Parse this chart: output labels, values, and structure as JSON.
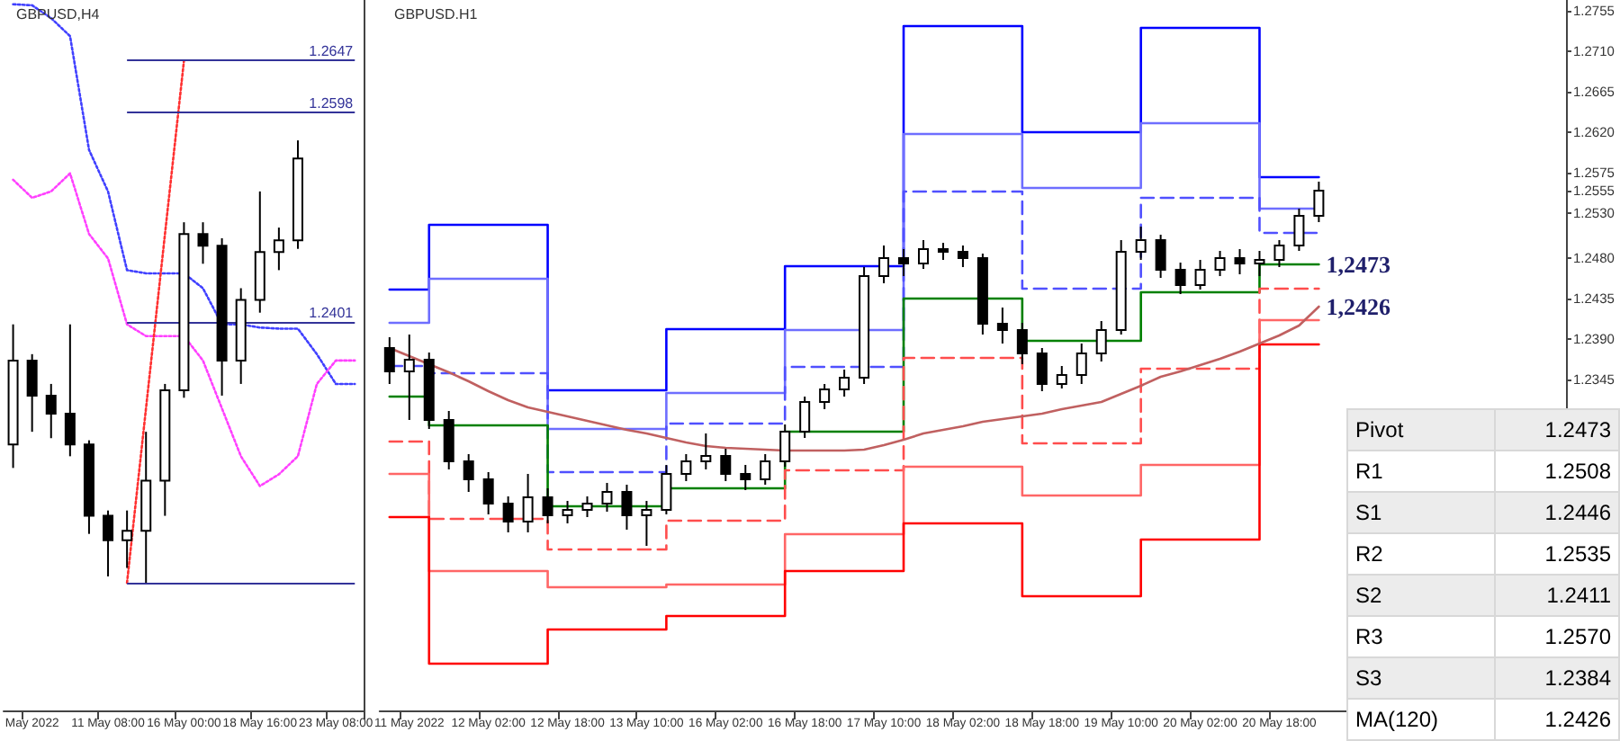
{
  "chart_data": [
    {
      "type": "candlestick",
      "title": "GBPUSD,H4",
      "categories": [
        null,
        "May 2022",
        null,
        null,
        null,
        "11 May 08:00",
        null,
        null,
        null,
        "16 May 00:00",
        null,
        null,
        null,
        "18 May 16:00",
        null,
        null,
        null,
        "23 May 08:00",
        null
      ],
      "ohlc": [
        [
          1.2286,
          1.2399,
          1.2264,
          1.2365
        ],
        [
          1.2365,
          1.2371,
          1.2298,
          1.2332
        ],
        [
          1.2332,
          1.2343,
          1.2292,
          1.2315
        ],
        [
          1.2315,
          1.2399,
          1.2275,
          1.2286
        ],
        [
          1.2286,
          1.229,
          1.2202,
          1.2219
        ],
        [
          1.2219,
          1.2224,
          1.2162,
          1.2196
        ],
        [
          1.2196,
          1.2224,
          1.217,
          1.2205
        ],
        [
          1.2205,
          1.2298,
          1.2156,
          1.2252
        ],
        [
          1.2252,
          1.2343,
          1.2219,
          1.2337
        ],
        [
          1.2337,
          1.2495,
          1.233,
          1.2484
        ],
        [
          1.2484,
          1.2495,
          1.2456,
          1.2473
        ],
        [
          1.2473,
          1.248,
          1.2332,
          1.2365
        ],
        [
          1.2365,
          1.2433,
          1.2343,
          1.2422
        ],
        [
          1.2422,
          1.2524,
          1.241,
          1.2467
        ],
        [
          1.2467,
          1.249,
          1.245,
          1.2478
        ],
        [
          1.2478,
          1.2572,
          1.247,
          1.2555
        ],
        null,
        null,
        null
      ],
      "series": [
        {
          "type": "line",
          "color": "#4040ff",
          "line_style": "dotted",
          "values": [
            1.27,
            1.2699,
            1.2687,
            1.267,
            1.2563,
            1.2524,
            1.245,
            1.2447,
            1.2447,
            1.2447,
            1.2433,
            1.2399,
            1.2399,
            1.2396,
            1.2395,
            1.2395,
            1.2371,
            1.2343,
            1.2343
          ]
        },
        {
          "type": "line",
          "color": "#ff40ff",
          "line_style": "dotted",
          "values": [
            1.2535,
            1.2518,
            1.2524,
            1.2541,
            1.2484,
            1.2461,
            1.2399,
            1.2388,
            1.2388,
            1.2388,
            1.2365,
            1.232,
            1.2275,
            1.2247,
            1.2258,
            1.2275,
            1.2343,
            1.2365,
            1.2365
          ]
        },
        {
          "type": "line",
          "color": "#ff3030",
          "line_style": "dotted",
          "values": [
            null,
            null,
            null,
            null,
            null,
            null,
            1.2156,
            1.232,
            1.2484,
            1.2647,
            null,
            null,
            null,
            null,
            null,
            null,
            null,
            null,
            null
          ]
        }
      ],
      "ref_lines": [
        {
          "axis": "y",
          "value": 1.2647,
          "label": "1.2647",
          "color": "#333399"
        },
        {
          "axis": "y",
          "value": 1.2598,
          "label": "1.2598",
          "color": "#333399"
        },
        {
          "axis": "y",
          "value": 1.2401,
          "label": "1.2401",
          "color": "#333399"
        },
        {
          "axis": "y",
          "value": 1.2156,
          "label": null,
          "color": "#333399"
        }
      ],
      "ylim": [
        1.2036,
        1.2704
      ],
      "tick_labels": "x",
      "grid": false
    },
    {
      "type": "candlestick",
      "title": "GBPUSD.H1",
      "categories": [
        null,
        "11 May 2022",
        null,
        null,
        null,
        "12 May 02:00",
        null,
        null,
        null,
        "12 May 18:00",
        null,
        null,
        null,
        "13 May 10:00",
        null,
        null,
        null,
        "16 May 02:00",
        null,
        null,
        null,
        "16 May 18:00",
        null,
        null,
        null,
        "17 May 10:00",
        null,
        null,
        null,
        "18 May 02:00",
        null,
        null,
        null,
        "18 May 18:00",
        null,
        null,
        null,
        "19 May 10:00",
        null,
        null,
        null,
        "20 May 02:00",
        null,
        null,
        null,
        "20 May 18:00",
        null,
        null,
        null,
        null,
        null,
        null,
        null,
        null,
        null,
        null,
        null,
        null,
        null,
        null
      ],
      "ohlc": [
        [
          1.238,
          1.2392,
          1.234,
          1.2354
        ],
        [
          1.2354,
          1.2395,
          1.23,
          1.2367
        ],
        [
          1.2367,
          1.2375,
          1.229,
          1.23
        ],
        [
          1.23,
          1.231,
          1.2245,
          1.2254
        ],
        [
          1.2254,
          1.2262,
          1.222,
          1.2234
        ],
        [
          1.2234,
          1.2242,
          1.2195,
          1.2207
        ],
        [
          1.2207,
          1.2215,
          1.2175,
          1.2187
        ],
        [
          1.2187,
          1.224,
          1.2175,
          1.2214
        ],
        [
          1.2214,
          1.2224,
          1.2185,
          1.2194
        ],
        [
          1.2194,
          1.221,
          1.2185,
          1.22
        ],
        [
          1.22,
          1.2215,
          1.2192,
          1.2207
        ],
        [
          1.2207,
          1.223,
          1.2198,
          1.222
        ],
        [
          1.222,
          1.2228,
          1.2178,
          1.2194
        ],
        [
          1.2194,
          1.221,
          1.216,
          1.22
        ],
        [
          1.22,
          1.225,
          1.2195,
          1.224
        ],
        [
          1.224,
          1.2262,
          1.2232,
          1.2254
        ],
        [
          1.2254,
          1.2285,
          1.2245,
          1.226
        ],
        [
          1.226,
          1.2268,
          1.2232,
          1.224
        ],
        [
          1.224,
          1.225,
          1.2222,
          1.2234
        ],
        [
          1.2234,
          1.2262,
          1.2228,
          1.2254
        ],
        [
          1.2254,
          1.2295,
          1.2248,
          1.2287
        ],
        [
          1.2287,
          1.2326,
          1.228,
          1.232
        ],
        [
          1.232,
          1.234,
          1.2312,
          1.2334
        ],
        [
          1.2334,
          1.2356,
          1.2326,
          1.2347
        ],
        [
          1.2347,
          1.247,
          1.234,
          1.246
        ],
        [
          1.246,
          1.2494,
          1.2452,
          1.248
        ],
        [
          1.248,
          1.249,
          1.246,
          1.2474
        ],
        [
          1.2474,
          1.25,
          1.2468,
          1.249
        ],
        [
          1.249,
          1.2497,
          1.2478,
          1.2487
        ],
        [
          1.2487,
          1.2494,
          1.247,
          1.248
        ],
        [
          1.248,
          1.2485,
          1.2395,
          1.2407
        ],
        [
          1.2407,
          1.2425,
          1.2385,
          1.24
        ],
        [
          1.24,
          1.2408,
          1.2362,
          1.2374
        ],
        [
          1.2374,
          1.238,
          1.2332,
          1.234
        ],
        [
          1.234,
          1.236,
          1.2335,
          1.235
        ],
        [
          1.235,
          1.2385,
          1.234,
          1.2374
        ],
        [
          1.2374,
          1.241,
          1.2365,
          1.24
        ],
        [
          1.24,
          1.25,
          1.2395,
          1.2487
        ],
        [
          1.2487,
          1.2515,
          1.2478,
          1.25
        ],
        [
          1.25,
          1.2506,
          1.2458,
          1.2467
        ],
        [
          1.2467,
          1.2475,
          1.244,
          1.245
        ],
        [
          1.245,
          1.2478,
          1.2445,
          1.2467
        ],
        [
          1.2467,
          1.2488,
          1.246,
          1.248
        ],
        [
          1.248,
          1.249,
          1.2462,
          1.2474
        ],
        [
          1.2474,
          1.2488,
          1.246,
          1.2478
        ],
        [
          1.2478,
          1.25,
          1.247,
          1.2494
        ],
        [
          1.2494,
          1.2535,
          1.2488,
          1.2527
        ],
        [
          1.2527,
          1.2565,
          1.252,
          1.2555
        ],
        null,
        null,
        null,
        null,
        null,
        null,
        null,
        null,
        null,
        null,
        null,
        null
      ],
      "series": [
        {
          "type": "step",
          "color": "#0000ff",
          "line_style": "solid",
          "values": [
            1.2445,
            1.2445,
            1.2445,
            1.2517,
            1.2517,
            1.2517,
            1.2517,
            1.2517,
            1.2517,
            1.2333,
            1.2333,
            1.2333,
            1.2333,
            1.2333,
            1.2333,
            1.2401,
            1.2401,
            1.2401,
            1.2401,
            1.2401,
            1.2401,
            1.2471,
            1.2471,
            1.2471,
            1.2471,
            1.2471,
            1.2471,
            1.2738,
            1.2738,
            1.2738,
            1.2738,
            1.2738,
            1.2738,
            1.262,
            1.262,
            1.262,
            1.262,
            1.262,
            1.262,
            1.2736,
            1.2736,
            1.2736,
            1.2736,
            1.2736,
            1.2736,
            1.257,
            1.257,
            1.257,
            null,
            null,
            null,
            null,
            null,
            null,
            null,
            null,
            null,
            null,
            null,
            null
          ]
        },
        {
          "type": "step",
          "color": "#6e6eff",
          "line_style": "solid",
          "values": [
            1.2408,
            1.2408,
            1.2408,
            1.2457,
            1.2457,
            1.2457,
            1.2457,
            1.2457,
            1.2457,
            1.229,
            1.229,
            1.229,
            1.229,
            1.229,
            1.229,
            1.233,
            1.233,
            1.233,
            1.233,
            1.233,
            1.233,
            1.24,
            1.24,
            1.24,
            1.24,
            1.24,
            1.24,
            1.2618,
            1.2618,
            1.2618,
            1.2618,
            1.2618,
            1.2618,
            1.2558,
            1.2558,
            1.2558,
            1.2558,
            1.2558,
            1.2558,
            1.263,
            1.263,
            1.263,
            1.263,
            1.263,
            1.263,
            1.2535,
            1.2535,
            1.2535,
            null,
            null,
            null,
            null,
            null,
            null,
            null,
            null,
            null,
            null,
            null,
            null
          ]
        },
        {
          "type": "step",
          "color": "#5050ff",
          "line_style": "dashed",
          "values": [
            1.236,
            1.236,
            1.236,
            1.2352,
            1.2352,
            1.2352,
            1.2352,
            1.2352,
            1.2352,
            1.2242,
            1.2242,
            1.2242,
            1.2242,
            1.2242,
            1.2242,
            1.2296,
            1.2296,
            1.2296,
            1.2296,
            1.2296,
            1.2296,
            1.2359,
            1.2359,
            1.2359,
            1.2359,
            1.2359,
            1.2359,
            1.2554,
            1.2554,
            1.2554,
            1.2554,
            1.2554,
            1.2554,
            1.2446,
            1.2446,
            1.2446,
            1.2446,
            1.2446,
            1.2446,
            1.2547,
            1.2547,
            1.2547,
            1.2547,
            1.2547,
            1.2547,
            1.2508,
            1.2508,
            1.2508,
            null,
            null,
            null,
            null,
            null,
            null,
            null,
            null,
            null,
            null,
            null,
            null
          ]
        },
        {
          "type": "step",
          "color": "#008000",
          "line_style": "solid",
          "values": [
            1.2326,
            1.2326,
            1.2326,
            1.2294,
            1.2294,
            1.2294,
            1.2294,
            1.2294,
            1.2294,
            1.2204,
            1.2204,
            1.2204,
            1.2204,
            1.2204,
            1.2204,
            1.2224,
            1.2224,
            1.2224,
            1.2224,
            1.2224,
            1.2224,
            1.2287,
            1.2287,
            1.2287,
            1.2287,
            1.2287,
            1.2287,
            1.2435,
            1.2435,
            1.2435,
            1.2435,
            1.2435,
            1.2435,
            1.2388,
            1.2388,
            1.2388,
            1.2388,
            1.2388,
            1.2388,
            1.2442,
            1.2442,
            1.2442,
            1.2442,
            1.2442,
            1.2442,
            1.2473,
            1.2473,
            1.2473,
            null,
            null,
            null,
            null,
            null,
            null,
            null,
            null,
            null,
            null,
            null,
            null
          ],
          "value_labels": [
            null,
            null,
            null,
            null,
            null,
            null,
            null,
            null,
            null,
            null,
            null,
            null,
            null,
            null,
            null,
            null,
            null,
            null,
            null,
            null,
            null,
            null,
            null,
            null,
            null,
            null,
            null,
            null,
            null,
            null,
            null,
            null,
            null,
            null,
            null,
            null,
            null,
            null,
            null,
            null,
            null,
            null,
            null,
            null,
            null,
            null,
            null,
            "1,2473",
            null,
            null,
            null,
            null,
            null,
            null,
            null,
            null,
            null,
            null,
            null,
            null
          ]
        },
        {
          "type": "step",
          "color": "#ff4d4d",
          "line_style": "dashed",
          "values": [
            1.2276,
            1.2276,
            1.2276,
            1.219,
            1.219,
            1.219,
            1.219,
            1.219,
            1.219,
            1.2156,
            1.2156,
            1.2156,
            1.2156,
            1.2156,
            1.2156,
            1.2188,
            1.2188,
            1.2188,
            1.2188,
            1.2188,
            1.2188,
            1.2244,
            1.2244,
            1.2244,
            1.2244,
            1.2244,
            1.2244,
            1.2369,
            1.2369,
            1.2369,
            1.2369,
            1.2369,
            1.2369,
            1.2274,
            1.2274,
            1.2274,
            1.2274,
            1.2274,
            1.2274,
            1.2357,
            1.2357,
            1.2357,
            1.2357,
            1.2357,
            1.2357,
            1.2446,
            1.2446,
            1.2446,
            null,
            null,
            null,
            null,
            null,
            null,
            null,
            null,
            null,
            null,
            null,
            null
          ]
        },
        {
          "type": "step",
          "color": "#ff6666",
          "line_style": "solid",
          "values": [
            1.224,
            1.224,
            1.224,
            1.2132,
            1.2132,
            1.2132,
            1.2132,
            1.2132,
            1.2132,
            1.2114,
            1.2114,
            1.2114,
            1.2114,
            1.2114,
            1.2114,
            1.2117,
            1.2117,
            1.2117,
            1.2117,
            1.2117,
            1.2117,
            1.2173,
            1.2173,
            1.2173,
            1.2173,
            1.2173,
            1.2173,
            1.2248,
            1.2248,
            1.2248,
            1.2248,
            1.2248,
            1.2248,
            1.2216,
            1.2216,
            1.2216,
            1.2216,
            1.2216,
            1.2216,
            1.225,
            1.225,
            1.225,
            1.225,
            1.225,
            1.225,
            1.2411,
            1.2411,
            1.2411,
            null,
            null,
            null,
            null,
            null,
            null,
            null,
            null,
            null,
            null,
            null,
            null
          ]
        },
        {
          "type": "step",
          "color": "#ff0000",
          "line_style": "solid",
          "values": [
            1.2192,
            1.2192,
            1.2192,
            1.2029,
            1.2029,
            1.2029,
            1.2029,
            1.2029,
            1.2029,
            1.2067,
            1.2067,
            1.2067,
            1.2067,
            1.2067,
            1.2067,
            1.2082,
            1.2082,
            1.2082,
            1.2082,
            1.2082,
            1.2082,
            1.2132,
            1.2132,
            1.2132,
            1.2132,
            1.2132,
            1.2132,
            1.2185,
            1.2185,
            1.2185,
            1.2185,
            1.2185,
            1.2185,
            1.2104,
            1.2104,
            1.2104,
            1.2104,
            1.2104,
            1.2104,
            1.2167,
            1.2167,
            1.2167,
            1.2167,
            1.2167,
            1.2167,
            1.2384,
            1.2384,
            1.2384,
            null,
            null,
            null,
            null,
            null,
            null,
            null,
            null,
            null,
            null,
            null,
            null
          ]
        },
        {
          "type": "line",
          "color": "#c06060",
          "line_style": "solid",
          "values": [
            1.238,
            1.2371,
            1.2362,
            1.2353,
            1.2343,
            1.2332,
            1.2322,
            1.2314,
            1.2309,
            1.2304,
            1.2299,
            1.2294,
            1.2289,
            1.2285,
            1.228,
            1.2275,
            1.2271,
            1.2269,
            1.2268,
            1.2267,
            1.2266,
            1.2266,
            1.2266,
            1.2266,
            1.2267,
            1.2272,
            1.2278,
            1.2285,
            1.2289,
            1.2293,
            1.2298,
            1.2301,
            1.2304,
            1.2307,
            1.2312,
            1.2316,
            1.232,
            1.2329,
            1.2338,
            1.2348,
            1.2354,
            1.2361,
            1.2368,
            1.2376,
            1.2385,
            1.2394,
            1.2405,
            1.2426,
            null,
            null,
            null,
            null,
            null,
            null,
            null,
            null,
            null,
            null,
            null,
            null
          ],
          "value_labels": [
            null,
            null,
            null,
            null,
            null,
            null,
            null,
            null,
            null,
            null,
            null,
            null,
            null,
            null,
            null,
            null,
            null,
            null,
            null,
            null,
            null,
            null,
            null,
            null,
            null,
            null,
            null,
            null,
            null,
            null,
            null,
            null,
            null,
            null,
            null,
            null,
            null,
            null,
            null,
            null,
            null,
            null,
            null,
            null,
            null,
            null,
            null,
            "1,2426",
            null,
            null,
            null,
            null,
            null,
            null,
            null,
            null,
            null,
            null,
            null,
            null
          ]
        }
      ],
      "ylim": [
        1.1977,
        1.2767
      ],
      "yticks": [
        1.2345,
        {
          "value": 1.239,
          "label": "1.2390"
        },
        1.2435,
        {
          "value": 1.248,
          "label": "1.2480"
        },
        {
          "value": 1.253,
          "label": "1.2530"
        },
        1.2555,
        1.2575,
        {
          "value": 1.262,
          "label": "1.2620"
        },
        1.2665,
        {
          "value": 1.271,
          "label": "1.2710"
        },
        1.2755
      ],
      "annotations": [
        "Pivot",
        "1.2473",
        "R1",
        "1.2508",
        "S1",
        "1.2446",
        "R2",
        "1.2535",
        "S2",
        "1.2411",
        "R3",
        "1.2570",
        "S3",
        "1.2384",
        "MA(120)",
        "1.2426"
      ],
      "grid": false
    }
  ]
}
